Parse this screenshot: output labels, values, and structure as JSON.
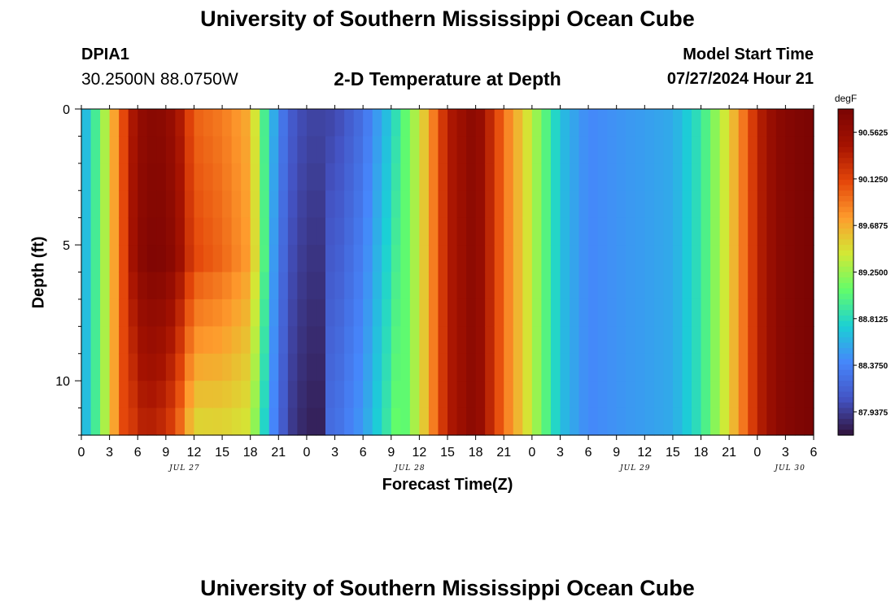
{
  "header": {
    "title": "University of Southern Mississippi Ocean Cube",
    "station": "DPIA1",
    "coordinates": "30.2500N  88.0750W",
    "subtitle": "2-D Temperature at Depth",
    "start_label": "Model Start Time",
    "start_value": "07/27/2024 Hour 21"
  },
  "footer": {
    "title": "University of Southern Mississippi Ocean Cube"
  },
  "chart_data": {
    "type": "heatmap",
    "title": "2-D Temperature at Depth",
    "xlabel": "Forecast Time(Z)",
    "ylabel": "Depth (ft)",
    "x_tick_labels": [
      "0",
      "3",
      "6",
      "9",
      "12",
      "15",
      "18",
      "21",
      "0",
      "3",
      "6",
      "9",
      "12",
      "15",
      "18",
      "21",
      "0",
      "3",
      "6",
      "9",
      "12",
      "15",
      "18",
      "21",
      "0",
      "3",
      "6"
    ],
    "day_labels": [
      "JUL 27",
      "JUL 28",
      "JUL 29",
      "JUL 30"
    ],
    "y_ticks": [
      0,
      5,
      10
    ],
    "ylim": [
      0,
      12
    ],
    "xlim_hours": [
      0,
      78
    ],
    "colorbar": {
      "unit": "degF",
      "tick_labels": [
        "90.5625",
        "90.1250",
        "89.6875",
        "89.2500",
        "88.8125",
        "88.3750",
        "87.9375"
      ],
      "range": [
        87.8,
        90.7
      ]
    },
    "colormap": [
      "#30123b",
      "#4454c4",
      "#4686fb",
      "#1bd0d5",
      "#62fc6b",
      "#d2e935",
      "#fe9b2d",
      "#e4460a",
      "#a41201",
      "#7a0403"
    ],
    "depth_levels_ft": [
      0,
      1,
      2,
      3,
      4,
      5,
      6,
      7,
      8,
      9,
      10,
      11,
      12
    ],
    "time_profile_hours": [
      0,
      2,
      4,
      6,
      8,
      10,
      12,
      15,
      18,
      20,
      22,
      24,
      27,
      30,
      33,
      36,
      39,
      42,
      45,
      48,
      51,
      54,
      57,
      60,
      63,
      66,
      69,
      72,
      74,
      76,
      78
    ],
    "surface_temperature_degF": [
      88.55,
      89.1,
      89.9,
      90.5,
      90.6,
      90.45,
      89.95,
      89.85,
      89.65,
      88.75,
      88.2,
      88.05,
      88.05,
      88.3,
      88.75,
      89.4,
      90.3,
      90.6,
      89.9,
      89.35,
      88.7,
      88.45,
      88.5,
      88.55,
      88.6,
      88.9,
      89.5,
      90.25,
      90.55,
      90.65,
      90.7
    ]
  }
}
